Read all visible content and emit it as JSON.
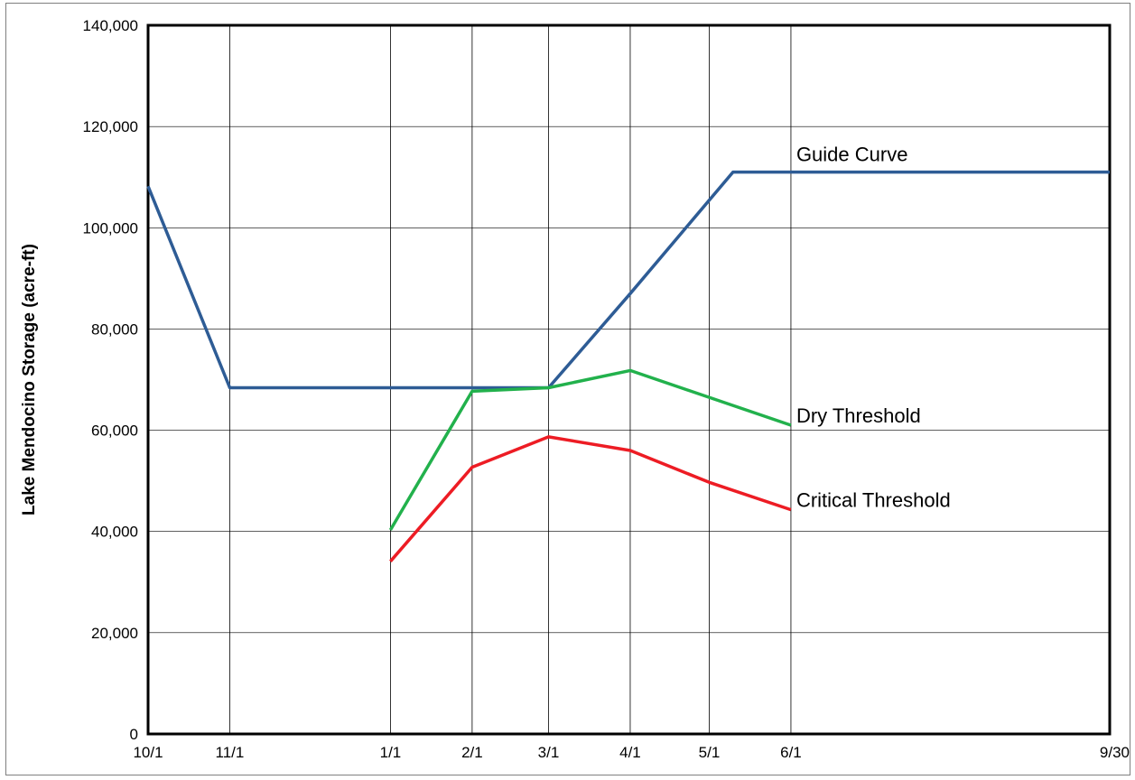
{
  "chart_data": {
    "type": "line",
    "title": "",
    "xlabel": "",
    "ylabel": "Lake Mendocino Storage (acre-ft)",
    "ylim": [
      0,
      140000
    ],
    "yticks": [
      "0",
      "20,000",
      "40,000",
      "60,000",
      "80,000",
      "100,000",
      "120,000",
      "140,000"
    ],
    "xticks": [
      {
        "label": "10/1",
        "day": 0
      },
      {
        "label": "11/1",
        "day": 31
      },
      {
        "label": "1/1",
        "day": 92
      },
      {
        "label": "2/1",
        "day": 123
      },
      {
        "label": "3/1",
        "day": 152
      },
      {
        "label": "4/1",
        "day": 183
      },
      {
        "label": "5/1",
        "day": 213
      },
      {
        "label": "6/1",
        "day": 244
      },
      {
        "label": "9/30",
        "day": 365
      }
    ],
    "grid": "vertical and horizontal",
    "series": [
      {
        "name": "Guide Curve",
        "color": "#2e5c95",
        "points": [
          [
            0,
            108200
          ],
          [
            31,
            68400
          ],
          [
            92,
            68400
          ],
          [
            123,
            68400
          ],
          [
            152,
            68400
          ],
          [
            183,
            87000
          ],
          [
            222,
            111000
          ],
          [
            365,
            111000
          ]
        ]
      },
      {
        "name": "Dry Threshold",
        "color": "#22b14c",
        "points": [
          [
            92,
            40300
          ],
          [
            123,
            67700
          ],
          [
            152,
            68400
          ],
          [
            183,
            71800
          ],
          [
            244,
            61000
          ]
        ]
      },
      {
        "name": "Critical Threshold",
        "color": "#ed1c24",
        "points": [
          [
            92,
            34100
          ],
          [
            123,
            52700
          ],
          [
            152,
            58700
          ],
          [
            183,
            56000
          ],
          [
            213,
            49700
          ],
          [
            244,
            44300
          ]
        ]
      }
    ]
  }
}
